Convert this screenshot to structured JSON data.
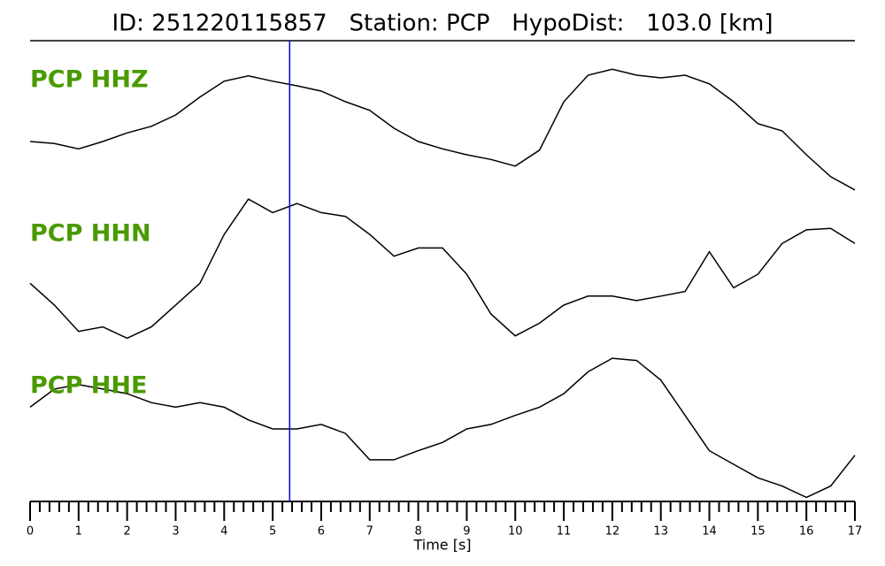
{
  "chart_data": {
    "type": "line",
    "title": "ID: 251220115857   Station: PCP   HypoDist:   103.0 [km]",
    "xlabel": "Time [s]",
    "xlim": [
      0,
      17
    ],
    "xticks": [
      0,
      1,
      2,
      3,
      4,
      5,
      6,
      7,
      8,
      9,
      10,
      11,
      12,
      13,
      14,
      15,
      16,
      17
    ],
    "xminorticks": [
      0.2,
      0.4,
      0.6,
      0.8,
      1.2,
      1.4,
      1.6,
      1.8,
      2.2,
      2.4,
      2.6,
      2.8,
      3.2,
      3.4,
      3.6,
      3.8,
      4.2,
      4.4,
      4.6,
      4.8,
      5.2,
      5.4,
      5.6,
      5.8,
      6.2,
      6.4,
      6.6,
      6.8,
      7.2,
      7.4,
      7.6,
      7.8,
      8.2,
      8.4,
      8.6,
      8.8,
      9.2,
      9.4,
      9.6,
      9.8,
      10.2,
      10.4,
      10.6,
      10.8,
      11.2,
      11.4,
      11.6,
      11.8,
      12.2,
      12.4,
      12.6,
      12.8,
      13.2,
      13.4,
      13.6,
      13.8,
      14.2,
      14.4,
      14.6,
      14.8,
      15.2,
      15.4,
      15.6,
      15.8,
      16.2,
      16.4,
      16.6,
      16.8
    ],
    "pick_time": 5.35,
    "pick_color": "#0000cc",
    "label_color": "#4a9a00",
    "x": [
      0,
      0.5,
      1,
      1.5,
      2,
      2.5,
      3,
      3.5,
      4,
      4.5,
      5,
      5.5,
      6,
      6.5,
      7,
      7.5,
      8,
      8.5,
      9,
      9.5,
      10,
      10.5,
      11,
      11.5,
      12,
      12.5,
      13,
      13.5,
      14,
      14.5,
      15,
      15.5,
      16,
      16.5,
      17
    ],
    "series": [
      {
        "name": "PCP HHZ",
        "color": "#000000",
        "ylim": [
          -1,
          1
        ],
        "values": [
          -0.2,
          -0.23,
          -0.31,
          -0.2,
          -0.07,
          0.03,
          0.2,
          0.47,
          0.71,
          0.79,
          0.71,
          0.64,
          0.56,
          0.4,
          0.27,
          0,
          -0.2,
          -0.31,
          -0.4,
          -0.47,
          -0.57,
          -0.33,
          0.4,
          0.8,
          0.89,
          0.8,
          0.76,
          0.8,
          0.67,
          0.4,
          0.07,
          -0.04,
          -0.4,
          -0.73,
          -0.93
        ]
      },
      {
        "name": "PCP HHN",
        "color": "#000000",
        "ylim": [
          -1,
          1
        ],
        "values": [
          -0.18,
          -0.47,
          -0.82,
          -0.76,
          -0.91,
          -0.76,
          -0.47,
          -0.18,
          0.47,
          0.94,
          0.76,
          0.88,
          0.76,
          0.71,
          0.47,
          0.18,
          0.29,
          0.29,
          -0.06,
          -0.59,
          -0.88,
          -0.71,
          -0.47,
          -0.35,
          -0.35,
          -0.41,
          -0.35,
          -0.29,
          0.24,
          -0.24,
          -0.06,
          0.35,
          0.53,
          0.55,
          0.35
        ]
      },
      {
        "name": "PCP HHE",
        "color": "#000000",
        "ylim": [
          -1,
          1
        ],
        "values": [
          0.29,
          0.53,
          0.59,
          0.53,
          0.47,
          0.35,
          0.29,
          0.35,
          0.29,
          0.12,
          0,
          0,
          0.06,
          -0.06,
          -0.41,
          -0.41,
          -0.29,
          -0.18,
          0,
          0.06,
          0.18,
          0.29,
          0.47,
          0.76,
          0.94,
          0.91,
          0.65,
          0.18,
          -0.29,
          -0.47,
          -0.65,
          -0.76,
          -0.91,
          -0.76,
          -0.35
        ]
      }
    ]
  }
}
